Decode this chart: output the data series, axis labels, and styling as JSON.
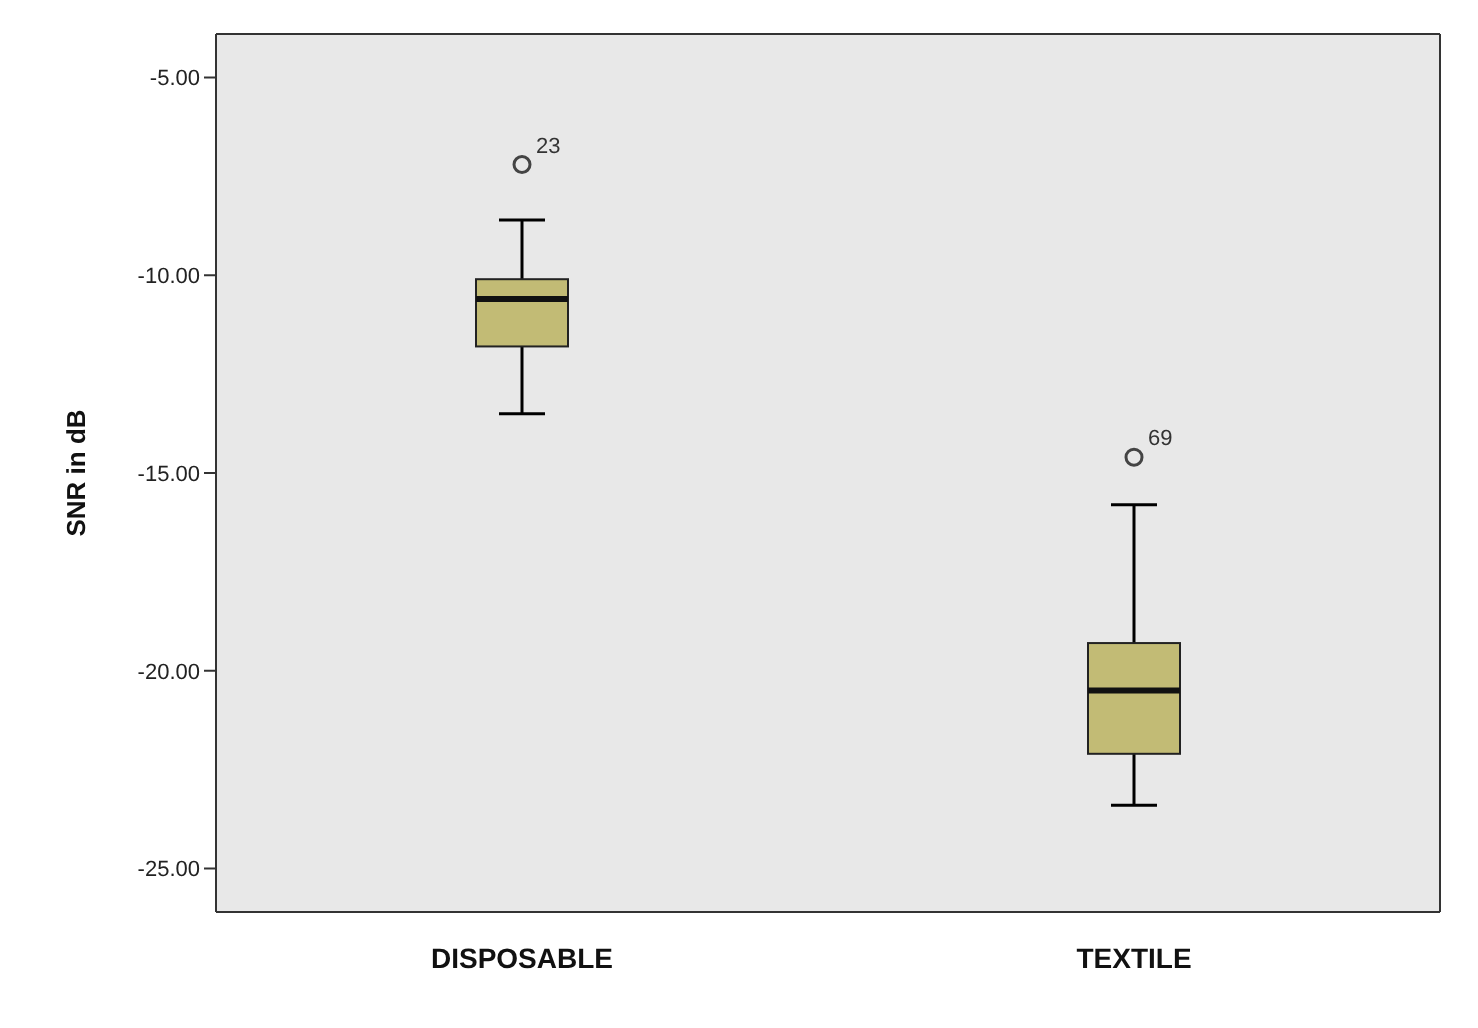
{
  "chart_data": {
    "type": "box",
    "ylabel": "SNR in dB",
    "categories": [
      "DISPOSABLE",
      "TEXTILE"
    ],
    "boxes": [
      {
        "low": -13.5,
        "q1": -11.8,
        "median": -10.6,
        "q3": -10.1,
        "high": -8.6,
        "outliers": [
          -7.2
        ]
      },
      {
        "low": -23.4,
        "q1": -22.1,
        "median": -20.5,
        "q3": -19.3,
        "high": -15.8,
        "outliers": [
          -14.6
        ]
      }
    ],
    "color": "#c2bb75",
    "ylim": [
      -26.1,
      -3.9
    ],
    "yticks": [
      {
        "value": -5,
        "label": "-5.00"
      },
      {
        "value": -10,
        "label": "-10.00"
      },
      {
        "value": -15,
        "label": "-15.00"
      },
      {
        "value": -20,
        "label": "-20.00"
      },
      {
        "value": -25,
        "label": "-25.00"
      }
    ],
    "annotations": [
      "23",
      "69"
    ]
  }
}
